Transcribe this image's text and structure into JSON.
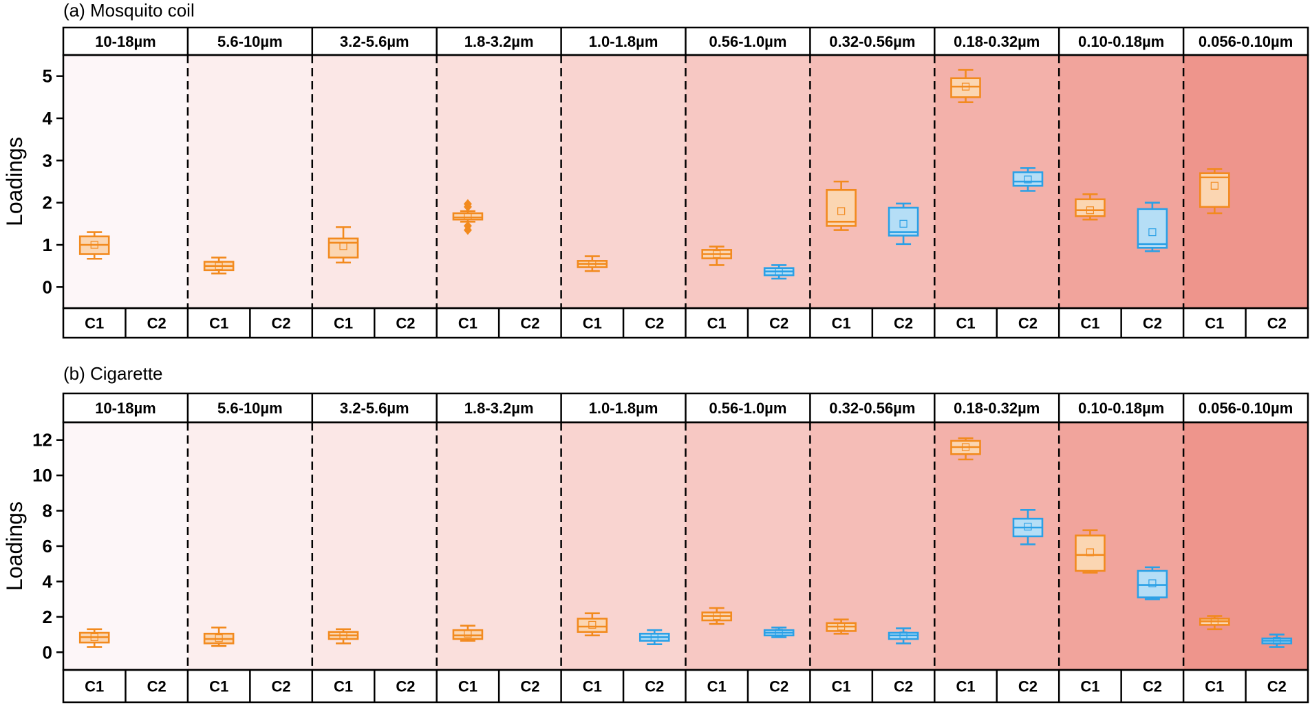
{
  "size_bins": [
    "10-18µm",
    "5.6-10µm",
    "3.2-5.6µm",
    "1.8-3.2µm",
    "1.0-1.8µm",
    "0.56-1.0µm",
    "0.32-0.56µm",
    "0.18-0.32µm",
    "0.10-0.18µm",
    "0.056-0.10µm"
  ],
  "components": [
    "C1",
    "C2"
  ],
  "colors": {
    "C1_stroke": "#F28A1E",
    "C1_fill": "#FBD6B2",
    "C2_stroke": "#2AA0E6",
    "C2_fill": "#B5DEF6",
    "band_shades": [
      "#FDF6F8",
      "#FCEEEE",
      "#FBE7E6",
      "#FADFDC",
      "#F9D4D0",
      "#F7C8C3",
      "#F5BDB7",
      "#F3B1AA",
      "#F1A49C",
      "#EE958C"
    ]
  },
  "chart_data": [
    {
      "type": "box",
      "panel_title": "(a) Mosquito coil",
      "ylabel": "Loadings",
      "ylim": [
        -0.5,
        5.5
      ],
      "yticks": [
        0,
        1,
        2,
        3,
        4,
        5
      ],
      "categories": [
        "10-18µm",
        "5.6-10µm",
        "3.2-5.6µm",
        "1.8-3.2µm",
        "1.0-1.8µm",
        "0.56-1.0µm",
        "0.32-0.56µm",
        "0.18-0.32µm",
        "0.10-0.18µm",
        "0.056-0.10µm"
      ],
      "series": [
        {
          "name": "C1",
          "boxes": [
            {
              "min": 0.67,
              "q1": 0.78,
              "median": 1.0,
              "q3": 1.2,
              "max": 1.3,
              "mean": 1.0
            },
            {
              "min": 0.32,
              "q1": 0.4,
              "median": 0.5,
              "q3": 0.6,
              "max": 0.7,
              "mean": 0.5
            },
            {
              "min": 0.58,
              "q1": 0.7,
              "median": 1.05,
              "q3": 1.15,
              "max": 1.42,
              "mean": 0.97
            },
            {
              "min": 1.55,
              "q1": 1.6,
              "median": 1.65,
              "q3": 1.75,
              "max": 1.8,
              "mean": 1.67,
              "outliers": [
                1.35,
                1.45,
                1.9,
                1.97
              ]
            },
            {
              "min": 0.38,
              "q1": 0.47,
              "median": 0.55,
              "q3": 0.62,
              "max": 0.73,
              "mean": 0.55
            },
            {
              "min": 0.52,
              "q1": 0.68,
              "median": 0.78,
              "q3": 0.88,
              "max": 0.96,
              "mean": 0.78
            },
            {
              "min": 1.35,
              "q1": 1.45,
              "median": 1.55,
              "q3": 2.3,
              "max": 2.5,
              "mean": 1.8
            },
            {
              "min": 4.38,
              "q1": 4.5,
              "median": 4.75,
              "q3": 4.95,
              "max": 5.15,
              "mean": 4.75
            },
            {
              "min": 1.6,
              "q1": 1.68,
              "median": 1.82,
              "q3": 2.08,
              "max": 2.2,
              "mean": 1.82
            },
            {
              "min": 1.75,
              "q1": 1.9,
              "median": 2.6,
              "q3": 2.7,
              "max": 2.8,
              "mean": 2.4
            }
          ]
        },
        {
          "name": "C2",
          "boxes": [
            null,
            null,
            null,
            null,
            null,
            {
              "min": 0.2,
              "q1": 0.28,
              "median": 0.37,
              "q3": 0.45,
              "max": 0.52,
              "mean": 0.37
            },
            {
              "min": 1.02,
              "q1": 1.22,
              "median": 1.3,
              "q3": 1.88,
              "max": 1.98,
              "mean": 1.5
            },
            {
              "min": 2.28,
              "q1": 2.4,
              "median": 2.5,
              "q3": 2.72,
              "max": 2.82,
              "mean": 2.55
            },
            {
              "min": 0.85,
              "q1": 0.93,
              "median": 1.02,
              "q3": 1.85,
              "max": 2.0,
              "mean": 1.3
            },
            null
          ]
        }
      ]
    },
    {
      "type": "box",
      "panel_title": "(b) Cigarette",
      "ylabel": "Loadings",
      "ylim": [
        -1.0,
        13.0
      ],
      "yticks": [
        0,
        2,
        4,
        6,
        8,
        10,
        12
      ],
      "categories": [
        "10-18µm",
        "5.6-10µm",
        "3.2-5.6µm",
        "1.8-3.2µm",
        "1.0-1.8µm",
        "0.56-1.0µm",
        "0.32-0.56µm",
        "0.18-0.32µm",
        "0.10-0.18µm",
        "0.056-0.10µm"
      ],
      "series": [
        {
          "name": "C1",
          "boxes": [
            {
              "min": 0.3,
              "q1": 0.55,
              "median": 0.85,
              "q3": 1.1,
              "max": 1.3,
              "mean": 0.85
            },
            {
              "min": 0.35,
              "q1": 0.5,
              "median": 0.75,
              "q3": 1.05,
              "max": 1.4,
              "mean": 0.8
            },
            {
              "min": 0.5,
              "q1": 0.75,
              "median": 0.95,
              "q3": 1.15,
              "max": 1.3,
              "mean": 0.95
            },
            {
              "min": 0.65,
              "q1": 0.75,
              "median": 0.95,
              "q3": 1.25,
              "max": 1.5,
              "mean": 1.05
            },
            {
              "min": 0.95,
              "q1": 1.15,
              "median": 1.45,
              "q3": 1.9,
              "max": 2.2,
              "mean": 1.55
            },
            {
              "min": 1.6,
              "q1": 1.8,
              "median": 2.05,
              "q3": 2.25,
              "max": 2.5,
              "mean": 2.05
            },
            {
              "min": 1.05,
              "q1": 1.2,
              "median": 1.45,
              "q3": 1.65,
              "max": 1.85,
              "mean": 1.45
            },
            {
              "min": 10.9,
              "q1": 11.2,
              "median": 11.6,
              "q3": 11.95,
              "max": 12.1,
              "mean": 11.6
            },
            {
              "min": 4.5,
              "q1": 4.6,
              "median": 5.5,
              "q3": 6.6,
              "max": 6.9,
              "mean": 5.65
            },
            {
              "min": 1.3,
              "q1": 1.55,
              "median": 1.75,
              "q3": 1.9,
              "max": 2.05,
              "mean": 1.75
            }
          ]
        },
        {
          "name": "C2",
          "boxes": [
            null,
            null,
            null,
            null,
            {
              "min": 0.45,
              "q1": 0.65,
              "median": 0.85,
              "q3": 1.05,
              "max": 1.25,
              "mean": 0.85
            },
            {
              "min": 0.85,
              "q1": 0.95,
              "median": 1.1,
              "q3": 1.25,
              "max": 1.4,
              "mean": 1.1
            },
            {
              "min": 0.5,
              "q1": 0.75,
              "median": 0.95,
              "q3": 1.1,
              "max": 1.35,
              "mean": 0.95
            },
            {
              "min": 6.1,
              "q1": 6.55,
              "median": 7.05,
              "q3": 7.55,
              "max": 8.05,
              "mean": 7.1
            },
            {
              "min": 3.0,
              "q1": 3.1,
              "median": 3.8,
              "q3": 4.6,
              "max": 4.8,
              "mean": 3.9
            },
            {
              "min": 0.3,
              "q1": 0.5,
              "median": 0.65,
              "q3": 0.78,
              "max": 1.0,
              "mean": 0.65
            }
          ]
        }
      ]
    }
  ]
}
